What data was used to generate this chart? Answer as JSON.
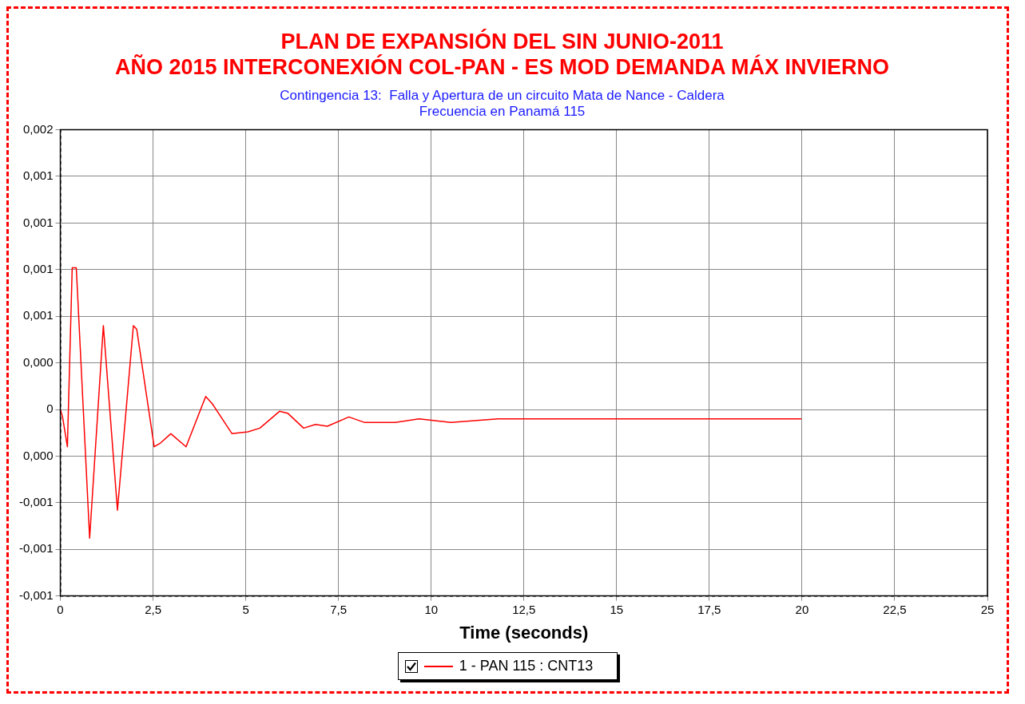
{
  "chart_data": {
    "type": "line",
    "title": [
      "PLAN DE EXPANSIÓN DEL SIN JUNIO-2011",
      "AÑO 2015 INTERCONEXIÓN COL-PAN - ES MOD DEMANDA MÁX INVIERNO"
    ],
    "subtitle": [
      "Contingencia 13:  Falla y Apertura de un circuito Mata de Nance - Caldera",
      "Frecuencia en Panamá 115"
    ],
    "xlabel": "Time (seconds)",
    "xlim": [
      0,
      25
    ],
    "xticks": [
      0,
      {
        "value": 2.5,
        "label": "2,5"
      },
      5,
      {
        "value": 7.5,
        "label": "7,5"
      },
      10,
      {
        "value": 12.5,
        "label": "12,5"
      },
      15,
      {
        "value": 17.5,
        "label": "17,5"
      },
      20,
      {
        "value": 22.5,
        "label": "22,5"
      },
      25
    ],
    "ylim": [
      -0.001,
      0.0015
    ],
    "yticks": [
      {
        "value": -0.001,
        "label": "-0,001"
      },
      {
        "value": -0.00075,
        "label": "-0,001"
      },
      {
        "value": -0.0005,
        "label": "-0,001"
      },
      {
        "value": -0.00025,
        "label": "0,000"
      },
      0,
      {
        "value": 0.00025,
        "label": "0,000"
      },
      {
        "value": 0.0005,
        "label": "0,001"
      },
      {
        "value": 0.00075,
        "label": "0,001"
      },
      {
        "value": 0.001,
        "label": "0,001"
      },
      {
        "value": 0.00125,
        "label": "0,001"
      },
      {
        "value": 0.0015,
        "label": "0,002"
      }
    ],
    "grid": true,
    "legend": "bottom",
    "marker": "none",
    "line_style": "solid",
    "series": [
      {
        "name": "1 - PAN 115 : CNT13",
        "color": "#ff0000",
        "x": [
          0,
          0.06,
          0.19,
          0.32,
          0.43,
          0.79,
          1.16,
          1.54,
          1.97,
          2.06,
          2.53,
          2.7,
          2.98,
          3.39,
          3.92,
          4.1,
          4.63,
          5.06,
          5.38,
          5.91,
          6.13,
          6.56,
          6.88,
          7.2,
          7.78,
          8.21,
          9.03,
          9.67,
          10.53,
          11.81,
          13.3,
          19.98
        ],
        "values": [
          0,
          -4e-05,
          -0.0002,
          0.00076,
          0.00076,
          -0.00069,
          0.00045,
          -0.00054,
          0.00045,
          0.00043,
          -0.0002,
          -0.00018,
          -0.00013,
          -0.0002,
          7e-05,
          3e-05,
          -0.00013,
          -0.00012,
          -0.0001,
          -1e-05,
          -2e-05,
          -0.0001,
          -8e-05,
          -9e-05,
          -4e-05,
          -7e-05,
          -7e-05,
          -5e-05,
          -7e-05,
          -5e-05,
          -5e-05,
          -5e-05
        ]
      }
    ]
  }
}
